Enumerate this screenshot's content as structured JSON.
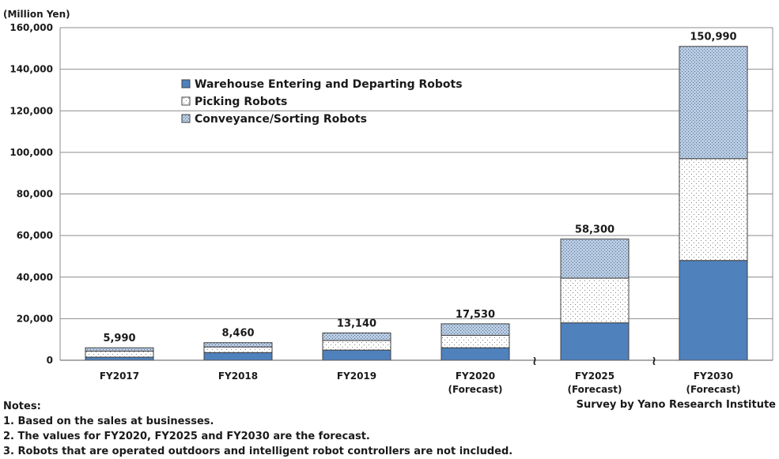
{
  "chart_data": {
    "type": "bar",
    "stacked": true,
    "unit_label": "(Million Yen)",
    "categories": [
      [
        "FY2017"
      ],
      [
        "FY2018"
      ],
      [
        "FY2019"
      ],
      [
        "FY2020",
        "(Forecast)"
      ],
      [
        "FY2025",
        "(Forecast)"
      ],
      [
        "FY2030",
        "(Forecast)"
      ]
    ],
    "series": [
      {
        "name": "Warehouse Entering and Departing Robots",
        "color": "#4f81bd",
        "pattern": "solid",
        "values": [
          1500,
          3700,
          4900,
          6000,
          18000,
          48000
        ]
      },
      {
        "name": "Picking Robots",
        "color": "#ffffff",
        "pattern": "sparse-dots",
        "values": [
          2900,
          2700,
          4600,
          6000,
          21500,
          49000
        ]
      },
      {
        "name": "Conveyance/Sorting Robots",
        "color": "#b8cce4",
        "pattern": "dense-dots",
        "values": [
          1590,
          2060,
          3640,
          5530,
          18800,
          53990
        ]
      }
    ],
    "totals": [
      "5,990",
      "8,460",
      "13,140",
      "17,530",
      "58,300",
      "150,990"
    ],
    "total_values": [
      5990,
      8460,
      13140,
      17530,
      58300,
      150990
    ],
    "y_ticks": [
      "0",
      "20,000",
      "40,000",
      "60,000",
      "80,000",
      "100,000",
      "120,000",
      "140,000",
      "160,000"
    ],
    "ylim": [
      0,
      160000
    ],
    "grid": true,
    "axis_breaks": [
      "≀",
      "≀"
    ],
    "legend_position": "top-left inside plot"
  },
  "notes": {
    "heading": "Notes:",
    "items": [
      "1. Based on the sales at businesses.",
      "2. The values for FY2020, FY2025 and FY2030 are the forecast.",
      "3. Robots that are operated outdoors and intelligent robot controllers are not included."
    ]
  },
  "source": "Survey by Yano Research Institute"
}
